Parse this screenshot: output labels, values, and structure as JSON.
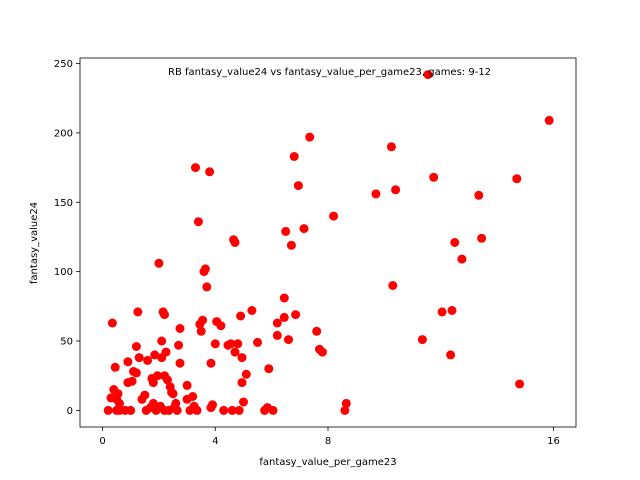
{
  "chart_data": {
    "type": "scatter",
    "title": "RB  fantasy_value24 vs fantasy_value_per_game23, games: 9-12",
    "xlabel": "fantasy_value_per_game23",
    "ylabel": "fantasy_value24",
    "xlim": [
      -0.8,
      16.8
    ],
    "ylim": [
      -12,
      254
    ],
    "xticks": [
      0,
      4,
      8,
      16
    ],
    "yticks": [
      0,
      50,
      100,
      150,
      200,
      250
    ],
    "marker_color": "#ff0000",
    "grid": false,
    "points": [
      {
        "x": 0.2,
        "y": 0
      },
      {
        "x": 0.3,
        "y": 9
      },
      {
        "x": 0.35,
        "y": 63
      },
      {
        "x": 0.4,
        "y": 15
      },
      {
        "x": 0.45,
        "y": 31
      },
      {
        "x": 0.5,
        "y": 0
      },
      {
        "x": 0.5,
        "y": 8
      },
      {
        "x": 0.55,
        "y": 12
      },
      {
        "x": 0.6,
        "y": 0
      },
      {
        "x": 0.6,
        "y": 5
      },
      {
        "x": 0.8,
        "y": 0
      },
      {
        "x": 0.9,
        "y": 35
      },
      {
        "x": 0.9,
        "y": 20
      },
      {
        "x": 1.0,
        "y": 0
      },
      {
        "x": 1.05,
        "y": 21
      },
      {
        "x": 1.1,
        "y": 28
      },
      {
        "x": 1.2,
        "y": 27
      },
      {
        "x": 1.2,
        "y": 46
      },
      {
        "x": 1.25,
        "y": 71
      },
      {
        "x": 1.3,
        "y": 38
      },
      {
        "x": 1.4,
        "y": 8
      },
      {
        "x": 1.5,
        "y": 11
      },
      {
        "x": 1.55,
        "y": 0
      },
      {
        "x": 1.6,
        "y": 36
      },
      {
        "x": 1.7,
        "y": 2
      },
      {
        "x": 1.75,
        "y": 23
      },
      {
        "x": 1.8,
        "y": 5
      },
      {
        "x": 1.8,
        "y": 20
      },
      {
        "x": 1.85,
        "y": 40
      },
      {
        "x": 1.9,
        "y": 0
      },
      {
        "x": 1.95,
        "y": 25
      },
      {
        "x": 2.0,
        "y": 106
      },
      {
        "x": 2.05,
        "y": 3
      },
      {
        "x": 2.1,
        "y": 38
      },
      {
        "x": 2.1,
        "y": 50
      },
      {
        "x": 2.15,
        "y": 71
      },
      {
        "x": 2.2,
        "y": 69
      },
      {
        "x": 2.2,
        "y": 0
      },
      {
        "x": 2.2,
        "y": 25
      },
      {
        "x": 2.25,
        "y": 42
      },
      {
        "x": 2.3,
        "y": 22
      },
      {
        "x": 2.35,
        "y": 0
      },
      {
        "x": 2.4,
        "y": 17
      },
      {
        "x": 2.45,
        "y": 13
      },
      {
        "x": 2.5,
        "y": 12
      },
      {
        "x": 2.55,
        "y": 2
      },
      {
        "x": 2.6,
        "y": 5
      },
      {
        "x": 2.65,
        "y": 0
      },
      {
        "x": 2.7,
        "y": 47
      },
      {
        "x": 2.75,
        "y": 59
      },
      {
        "x": 2.75,
        "y": 34
      },
      {
        "x": 3.0,
        "y": 18
      },
      {
        "x": 3.0,
        "y": 8
      },
      {
        "x": 3.1,
        "y": 0
      },
      {
        "x": 3.2,
        "y": 10
      },
      {
        "x": 3.25,
        "y": 3
      },
      {
        "x": 3.3,
        "y": 175
      },
      {
        "x": 3.35,
        "y": 0
      },
      {
        "x": 3.4,
        "y": 136
      },
      {
        "x": 3.45,
        "y": 62
      },
      {
        "x": 3.5,
        "y": 57
      },
      {
        "x": 3.55,
        "y": 65
      },
      {
        "x": 3.6,
        "y": 100
      },
      {
        "x": 3.65,
        "y": 102
      },
      {
        "x": 3.7,
        "y": 89
      },
      {
        "x": 3.8,
        "y": 172
      },
      {
        "x": 3.85,
        "y": 34
      },
      {
        "x": 3.85,
        "y": 2
      },
      {
        "x": 3.9,
        "y": 4
      },
      {
        "x": 4.0,
        "y": 48
      },
      {
        "x": 4.05,
        "y": 64
      },
      {
        "x": 4.2,
        "y": 61
      },
      {
        "x": 4.3,
        "y": 0
      },
      {
        "x": 4.45,
        "y": 47
      },
      {
        "x": 4.55,
        "y": 48
      },
      {
        "x": 4.6,
        "y": 0
      },
      {
        "x": 4.65,
        "y": 123
      },
      {
        "x": 4.7,
        "y": 121
      },
      {
        "x": 4.7,
        "y": 42
      },
      {
        "x": 4.8,
        "y": 48
      },
      {
        "x": 4.85,
        "y": 0
      },
      {
        "x": 4.9,
        "y": 68
      },
      {
        "x": 4.95,
        "y": 38
      },
      {
        "x": 4.95,
        "y": 20
      },
      {
        "x": 5.0,
        "y": 6
      },
      {
        "x": 5.1,
        "y": 26
      },
      {
        "x": 5.3,
        "y": 72
      },
      {
        "x": 5.5,
        "y": 49
      },
      {
        "x": 5.75,
        "y": 0
      },
      {
        "x": 5.85,
        "y": 2
      },
      {
        "x": 5.9,
        "y": 30
      },
      {
        "x": 6.05,
        "y": 0
      },
      {
        "x": 6.2,
        "y": 63
      },
      {
        "x": 6.2,
        "y": 54
      },
      {
        "x": 6.45,
        "y": 67
      },
      {
        "x": 6.45,
        "y": 81
      },
      {
        "x": 6.5,
        "y": 129
      },
      {
        "x": 6.6,
        "y": 51
      },
      {
        "x": 6.7,
        "y": 119
      },
      {
        "x": 6.8,
        "y": 183
      },
      {
        "x": 6.85,
        "y": 69
      },
      {
        "x": 6.95,
        "y": 162
      },
      {
        "x": 7.15,
        "y": 131
      },
      {
        "x": 7.35,
        "y": 197
      },
      {
        "x": 7.6,
        "y": 57
      },
      {
        "x": 7.7,
        "y": 44
      },
      {
        "x": 7.8,
        "y": 42
      },
      {
        "x": 8.2,
        "y": 140
      },
      {
        "x": 8.6,
        "y": 0
      },
      {
        "x": 8.65,
        "y": 5
      },
      {
        "x": 9.7,
        "y": 156
      },
      {
        "x": 10.25,
        "y": 190
      },
      {
        "x": 10.3,
        "y": 90
      },
      {
        "x": 10.4,
        "y": 159
      },
      {
        "x": 11.35,
        "y": 51
      },
      {
        "x": 11.55,
        "y": 242
      },
      {
        "x": 11.75,
        "y": 168
      },
      {
        "x": 12.05,
        "y": 71
      },
      {
        "x": 12.35,
        "y": 40
      },
      {
        "x": 12.4,
        "y": 72
      },
      {
        "x": 12.5,
        "y": 121
      },
      {
        "x": 12.75,
        "y": 109
      },
      {
        "x": 13.35,
        "y": 155
      },
      {
        "x": 13.45,
        "y": 124
      },
      {
        "x": 14.7,
        "y": 167
      },
      {
        "x": 14.8,
        "y": 19
      },
      {
        "x": 15.85,
        "y": 209
      }
    ]
  }
}
